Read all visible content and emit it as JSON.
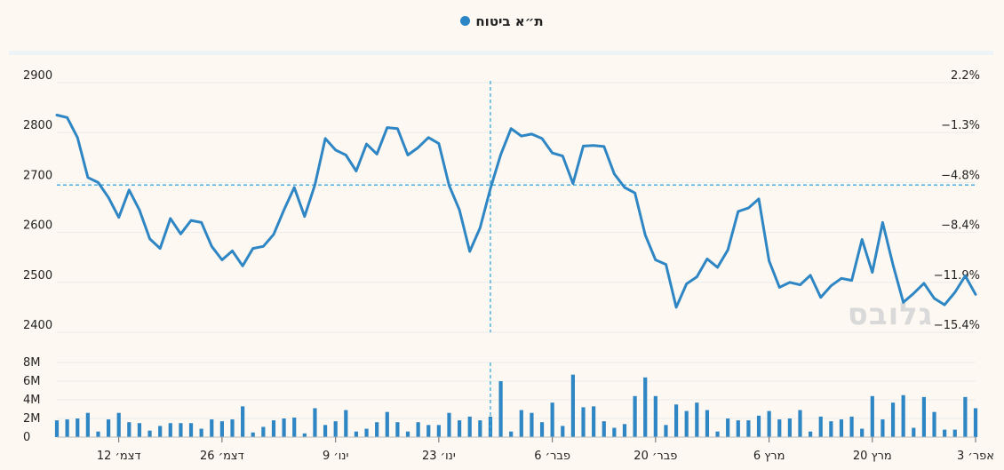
{
  "title": "ת״א ביטוח",
  "watermark": "גלובס",
  "colors": {
    "line": "#2f86c4",
    "bar": "#2f86c4",
    "crosshair": "#3aa7e0",
    "grid": "#ececec",
    "background": "#fdf8f1"
  },
  "chart_data": [
    {
      "type": "line",
      "title": "ת״א ביטוח",
      "ylim": [
        2400,
        2900
      ],
      "yticks_left": [
        "2900",
        "2800",
        "2700",
        "2600",
        "2500",
        "2400"
      ],
      "yticks_right": [
        "2.2%",
        "−1.3%",
        "−4.8%",
        "−8.4%",
        "−11.9%",
        "−15.4%"
      ],
      "grid": true,
      "crosshair": {
        "index": 42,
        "y": 2695
      },
      "values": [
        2835,
        2830,
        2790,
        2710,
        2700,
        2670,
        2630,
        2685,
        2645,
        2587,
        2568,
        2628,
        2597,
        2624,
        2620,
        2572,
        2545,
        2563,
        2533,
        2568,
        2572,
        2596,
        2645,
        2690,
        2632,
        2695,
        2788,
        2765,
        2755,
        2723,
        2777,
        2757,
        2810,
        2808,
        2755,
        2770,
        2790,
        2778,
        2694,
        2645,
        2562,
        2609,
        2688,
        2756,
        2808,
        2793,
        2797,
        2788,
        2759,
        2753,
        2698,
        2773,
        2774,
        2772,
        2717,
        2690,
        2679,
        2595,
        2545,
        2536,
        2450,
        2497,
        2511,
        2547,
        2530,
        2565,
        2642,
        2649,
        2667,
        2543,
        2490,
        2500,
        2495,
        2514,
        2470,
        2493,
        2508,
        2504,
        2586,
        2520,
        2620,
        2535,
        2460,
        2478,
        2498,
        2468,
        2455,
        2480,
        2513,
        2476
      ]
    },
    {
      "type": "bar",
      "ylabel_ticks": [
        "8M",
        "6M",
        "4M",
        "2M",
        "0"
      ],
      "ylim": [
        0,
        8
      ],
      "values": [
        1.8,
        1.9,
        2.0,
        2.6,
        0.6,
        1.9,
        2.6,
        1.6,
        1.5,
        0.7,
        1.2,
        1.5,
        1.5,
        1.5,
        0.9,
        1.9,
        1.7,
        1.9,
        3.3,
        0.5,
        1.1,
        1.8,
        2.0,
        2.1,
        0.4,
        3.1,
        1.3,
        1.7,
        2.9,
        0.6,
        0.9,
        1.6,
        2.7,
        1.6,
        0.6,
        1.6,
        1.3,
        1.3,
        2.6,
        1.8,
        2.2,
        1.8,
        2.2,
        6.0,
        0.6,
        2.9,
        2.6,
        1.6,
        3.7,
        1.2,
        6.7,
        3.2,
        3.3,
        1.7,
        1.0,
        1.4,
        4.4,
        6.4,
        4.4,
        1.3,
        3.5,
        2.8,
        3.7,
        2.9,
        0.6,
        2.0,
        1.8,
        1.8,
        2.3,
        2.8,
        1.9,
        2.0,
        2.9,
        0.6,
        2.2,
        1.7,
        1.9,
        2.2,
        0.9,
        4.4,
        1.9,
        3.7,
        4.5,
        1.0,
        4.3,
        2.7,
        0.8,
        0.8,
        4.3,
        3.1
      ]
    }
  ],
  "xaxis": {
    "labels": [
      {
        "text": "דצמ׳ 12",
        "index": 6
      },
      {
        "text": "דצמ׳ 26",
        "index": 16
      },
      {
        "text": "ינו׳ 9",
        "index": 27
      },
      {
        "text": "ינו׳ 23",
        "index": 37
      },
      {
        "text": "פבר׳ 6",
        "index": 48
      },
      {
        "text": "פבר׳ 20",
        "index": 58
      },
      {
        "text": "מרץ 6",
        "index": 69
      },
      {
        "text": "מרץ 20",
        "index": 79
      },
      {
        "text": "אפר׳ 3",
        "index": 89
      }
    ]
  }
}
